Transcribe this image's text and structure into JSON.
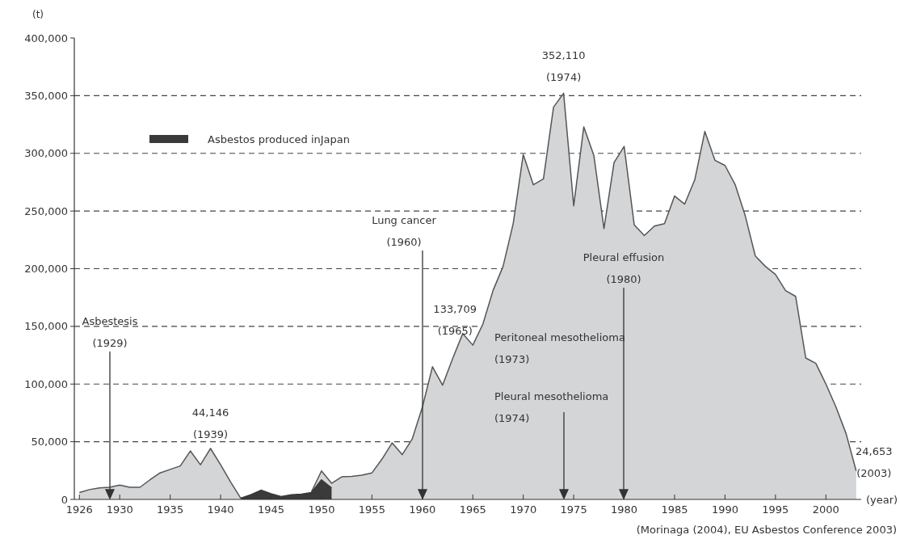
{
  "chart_data": {
    "type": "area",
    "x": [
      1926,
      1927,
      1928,
      1929,
      1930,
      1931,
      1932,
      1933,
      1934,
      1935,
      1936,
      1937,
      1938,
      1939,
      1940,
      1941,
      1942,
      1943,
      1944,
      1945,
      1946,
      1947,
      1948,
      1949,
      1950,
      1951,
      1952,
      1953,
      1954,
      1955,
      1956,
      1957,
      1958,
      1959,
      1960,
      1961,
      1962,
      1963,
      1964,
      1965,
      1966,
      1967,
      1968,
      1969,
      1970,
      1971,
      1972,
      1973,
      1974,
      1975,
      1976,
      1977,
      1978,
      1979,
      1980,
      1981,
      1982,
      1983,
      1984,
      1985,
      1986,
      1987,
      1988,
      1989,
      1990,
      1991,
      1992,
      1993,
      1994,
      1995,
      1996,
      1997,
      1998,
      1999,
      2000,
      2001,
      2002,
      2003
    ],
    "series": [
      {
        "color": "#d3d5d7",
        "values": [
          6000,
          8500,
          10000,
          10500,
          12500,
          10500,
          10500,
          17000,
          23000,
          26000,
          29000,
          42000,
          30000,
          44146,
          30000,
          15000,
          1000,
          null,
          null,
          null,
          null,
          null,
          null,
          6500,
          24700,
          14000,
          19600,
          20000,
          21000,
          23000,
          35000,
          49000,
          38800,
          52500,
          80000,
          115000,
          99000,
          122000,
          143700,
          133709,
          152000,
          181000,
          202000,
          239000,
          299000,
          272700,
          277800,
          340000,
          352110,
          254500,
          323000,
          298000,
          234800,
          292000,
          306000,
          238000,
          228700,
          237000,
          239000,
          263000,
          256000,
          277000,
          319000,
          294000,
          289500,
          273000,
          246000,
          211000,
          202000,
          195000,
          181000,
          176000,
          122600,
          118000,
          100000,
          80000,
          57000,
          24653
        ]
      },
      {
        "name": "Asbestos produced inJapan",
        "color": "#3a3a3a",
        "values": [
          null,
          null,
          null,
          null,
          null,
          null,
          null,
          null,
          null,
          null,
          null,
          null,
          null,
          null,
          null,
          null,
          1000,
          4000,
          8000,
          5000,
          2500,
          4000,
          4500,
          6000,
          17000,
          10000,
          null,
          null,
          null,
          null,
          null,
          null,
          null,
          null,
          null,
          null,
          null,
          null,
          null,
          null,
          null,
          null,
          null,
          null,
          null,
          null,
          null,
          null,
          null,
          null,
          null,
          null,
          null,
          null,
          null,
          null,
          null,
          null,
          null,
          null,
          null,
          null,
          null,
          null,
          null,
          null,
          null,
          null,
          null,
          null,
          null,
          null,
          null,
          null,
          null,
          null,
          null,
          null
        ]
      }
    ],
    "xlim": [
      1925.5,
      2003.5
    ],
    "xticks": [
      1926,
      1930,
      1935,
      1940,
      1945,
      1950,
      1955,
      1960,
      1965,
      1970,
      1975,
      1980,
      1985,
      1990,
      1995,
      2000
    ],
    "ylim": [
      0,
      400000
    ],
    "yticks": [
      {
        "value": 0,
        "label": "0"
      },
      {
        "value": 50000,
        "label": "50,000"
      },
      {
        "value": 100000,
        "label": "100,000"
      },
      {
        "value": 150000,
        "label": "150,000"
      },
      {
        "value": 200000,
        "label": "200,000"
      },
      {
        "value": 250000,
        "label": "250,000"
      },
      {
        "value": 300000,
        "label": "300,000"
      },
      {
        "value": 350000,
        "label": "350,000"
      },
      {
        "value": 400000,
        "label": "400,000"
      }
    ],
    "ylabel": "(t)",
    "xlabel": "(year)",
    "grid": "y",
    "line_style": "dashed",
    "legend": "top left",
    "annotations": [
      "Asbestesis\n(1929)",
      {
        "text": "44,146\n(1939)",
        "x": 1939,
        "y": 44146
      },
      "Lung cancer\n(1960)",
      {
        "text": "133,709\n(1965)",
        "x": 1965,
        "y": 133709
      },
      {
        "text": "352,110\n(1974)",
        "x": 1974,
        "y": 352110
      },
      "Peritoneal mesothelioma\n(1973)",
      "Pleural mesothelioma\n(1974)",
      "Pleural effusion\n(1980)",
      {
        "text": "24,653\n(2003)",
        "x": 2003,
        "y": 24653
      },
      "(Morinaga (2004), EU Asbestos Conference 2003)"
    ]
  }
}
